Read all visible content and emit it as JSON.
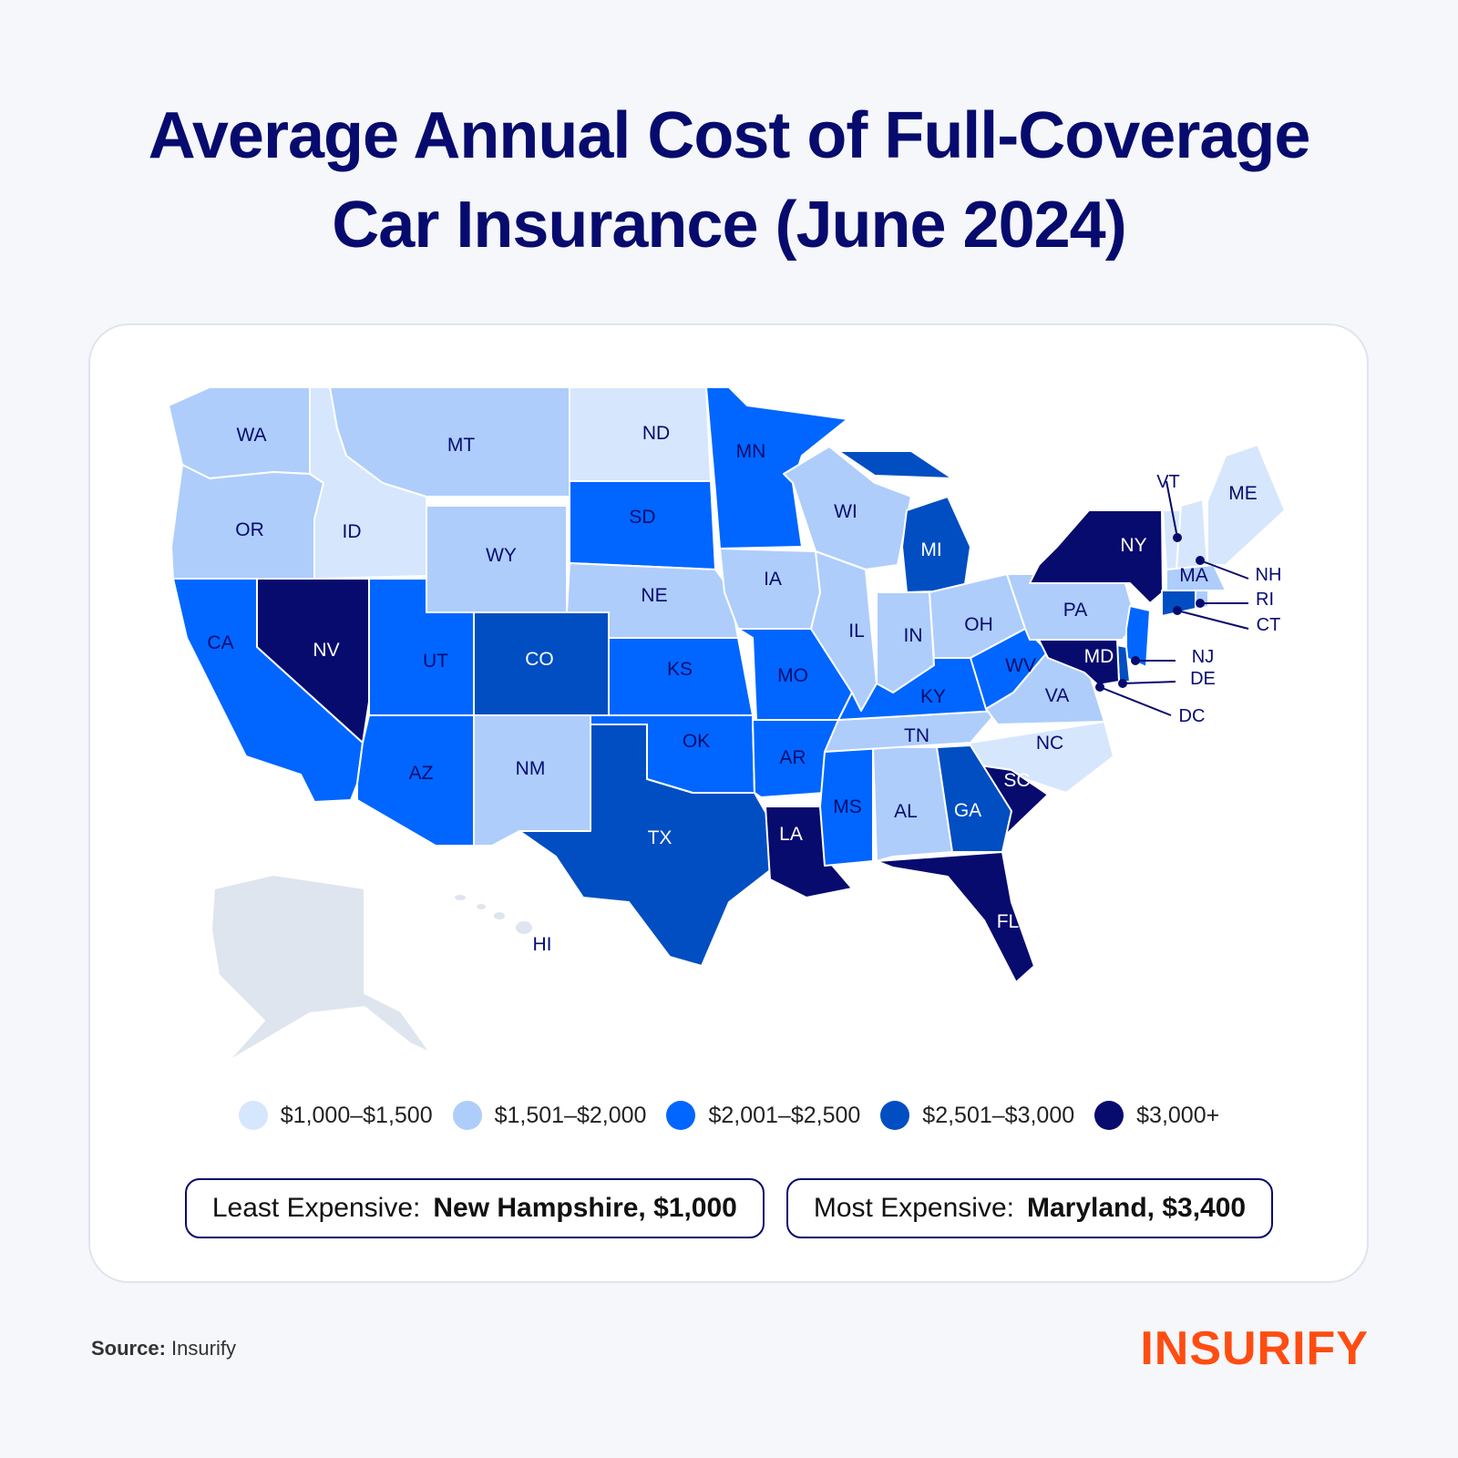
{
  "title_line1": "Average Annual Cost of Full-Coverage",
  "title_line2": "Car Insurance (June 2024)",
  "legend": [
    {
      "label": "$1,000–$1,500",
      "color": "#d6e6fd"
    },
    {
      "label": "$1,501–$2,000",
      "color": "#aecdfb"
    },
    {
      "label": "$2,001–$2,500",
      "color": "#0066ff"
    },
    {
      "label": "$2,501–$3,000",
      "color": "#004ec2"
    },
    {
      "label": "$3,000+",
      "color": "#070b6e"
    }
  ],
  "no_data_color": "#dfe5ee",
  "states": [
    {
      "abbr": "WA",
      "tier": 1
    },
    {
      "abbr": "OR",
      "tier": 1
    },
    {
      "abbr": "CA",
      "tier": 2
    },
    {
      "abbr": "ID",
      "tier": 0
    },
    {
      "abbr": "NV",
      "tier": 4
    },
    {
      "abbr": "MT",
      "tier": 1
    },
    {
      "abbr": "WY",
      "tier": 1
    },
    {
      "abbr": "UT",
      "tier": 2
    },
    {
      "abbr": "AZ",
      "tier": 2
    },
    {
      "abbr": "CO",
      "tier": 3
    },
    {
      "abbr": "NM",
      "tier": 1
    },
    {
      "abbr": "ND",
      "tier": 0
    },
    {
      "abbr": "SD",
      "tier": 2
    },
    {
      "abbr": "NE",
      "tier": 1
    },
    {
      "abbr": "KS",
      "tier": 2
    },
    {
      "abbr": "OK",
      "tier": 2
    },
    {
      "abbr": "TX",
      "tier": 3
    },
    {
      "abbr": "MN",
      "tier": 2
    },
    {
      "abbr": "IA",
      "tier": 1
    },
    {
      "abbr": "MO",
      "tier": 2
    },
    {
      "abbr": "AR",
      "tier": 2
    },
    {
      "abbr": "LA",
      "tier": 4
    },
    {
      "abbr": "WI",
      "tier": 1
    },
    {
      "abbr": "IL",
      "tier": 1
    },
    {
      "abbr": "MI",
      "tier": 3
    },
    {
      "abbr": "IN",
      "tier": 1
    },
    {
      "abbr": "OH",
      "tier": 1
    },
    {
      "abbr": "KY",
      "tier": 2
    },
    {
      "abbr": "TN",
      "tier": 1
    },
    {
      "abbr": "MS",
      "tier": 2
    },
    {
      "abbr": "AL",
      "tier": 1
    },
    {
      "abbr": "GA",
      "tier": 3
    },
    {
      "abbr": "FL",
      "tier": 4
    },
    {
      "abbr": "SC",
      "tier": 4
    },
    {
      "abbr": "NC",
      "tier": 0
    },
    {
      "abbr": "VA",
      "tier": 1
    },
    {
      "abbr": "WV",
      "tier": 2
    },
    {
      "abbr": "PA",
      "tier": 1
    },
    {
      "abbr": "NY",
      "tier": 4
    },
    {
      "abbr": "VT",
      "tier": 0
    },
    {
      "abbr": "NH",
      "tier": 0
    },
    {
      "abbr": "ME",
      "tier": 0
    },
    {
      "abbr": "MA",
      "tier": 1
    },
    {
      "abbr": "RI",
      "tier": 1
    },
    {
      "abbr": "CT",
      "tier": 3
    },
    {
      "abbr": "NJ",
      "tier": 2
    },
    {
      "abbr": "DE",
      "tier": 3
    },
    {
      "abbr": "MD",
      "tier": 4
    },
    {
      "abbr": "DC",
      "tier": 4
    },
    {
      "abbr": "AK",
      "tier": null
    },
    {
      "abbr": "HI",
      "tier": null
    }
  ],
  "least_expensive": {
    "label": "Least Expensive:",
    "value": "New Hampshire, $1,000"
  },
  "most_expensive": {
    "label": "Most Expensive:",
    "value": "Maryland, $3,400"
  },
  "source": {
    "label": "Source:",
    "value": "Insurify"
  },
  "logo": "INSURIFY"
}
